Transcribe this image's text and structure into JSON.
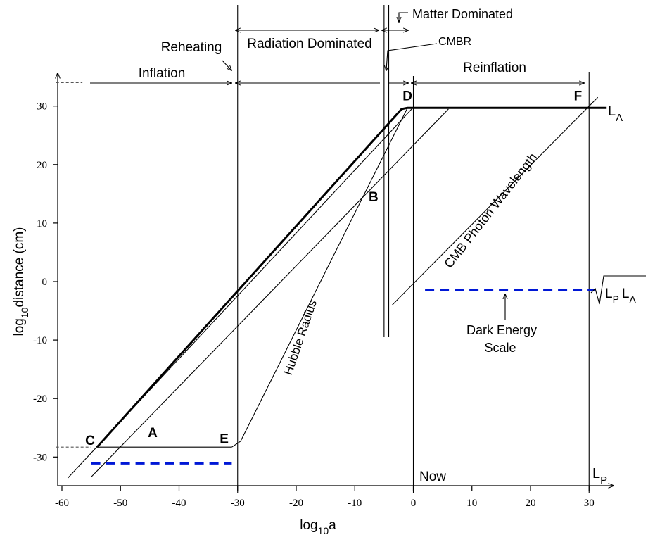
{
  "chart_data": {
    "type": "line",
    "xlabel": "log",
    "xlabel_sub": "10",
    "xlabel_tail": "a",
    "ylabel": "log",
    "ylabel_sub": "10",
    "ylabel_tail": "distance (cm)",
    "xlim": [
      -61,
      34
    ],
    "ylim": [
      -35,
      36
    ],
    "x_ticks": [
      -60,
      -50,
      -40,
      -30,
      -20,
      -10,
      0,
      10,
      20,
      30
    ],
    "y_ticks": [
      -30,
      -20,
      -10,
      0,
      10,
      20,
      30
    ],
    "series": [
      {
        "name": "",
        "style": "thick",
        "points": [
          [
            -54,
            -28.3
          ],
          [
            -2,
            29.5
          ],
          [
            -1,
            29.7
          ],
          [
            33,
            29.7
          ]
        ]
      },
      {
        "name": "",
        "style": "thin",
        "points": [
          [
            -54,
            -28.3
          ],
          [
            -31,
            -28.3
          ]
        ]
      },
      {
        "name": "",
        "style": "thin",
        "points": [
          [
            -59,
            -33.6
          ],
          [
            0,
            29.8
          ]
        ]
      },
      {
        "name": "",
        "style": "thin",
        "points": [
          [
            -55,
            -33.4
          ],
          [
            6,
            29.5
          ]
        ]
      },
      {
        "name": "Hubble Radius",
        "style": "thin",
        "points": [
          [
            -31,
            -28.3
          ],
          [
            -29.5,
            -27.3
          ],
          [
            -1,
            29.7
          ]
        ]
      },
      {
        "name": "CMB Photon Wavelength",
        "style": "thin",
        "points": [
          [
            -3.6,
            -4
          ],
          [
            31.5,
            31.5
          ]
        ]
      },
      {
        "name": "",
        "style": "dash-blue",
        "points": [
          [
            -55,
            -31.1
          ],
          [
            -31,
            -31.1
          ]
        ]
      },
      {
        "name": "",
        "style": "dash-blue",
        "points": [
          [
            2,
            -1.5
          ],
          [
            31,
            -1.5
          ]
        ]
      }
    ],
    "vertical_lines": [
      {
        "x": -30,
        "y_range": [
          -35,
          36
        ]
      },
      {
        "x": -5,
        "y_range": [
          -9.5,
          36
        ]
      },
      {
        "x": -4.2,
        "y_range": [
          -9.5,
          36
        ]
      },
      {
        "x": 0,
        "y_range": [
          -35,
          36
        ]
      },
      {
        "x": 30,
        "y_range": [
          -35,
          36
        ]
      }
    ],
    "guide_dashes": [
      {
        "y": 34,
        "x_range": [
          -61,
          -56.5
        ]
      },
      {
        "y": -28.3,
        "x_range": [
          -61,
          -55
        ]
      }
    ],
    "points": [
      {
        "label": "A",
        "x": -44.5,
        "y": -26.6
      },
      {
        "label": "B",
        "x": -6.8,
        "y": 13.7
      },
      {
        "label": "C",
        "x": -55.2,
        "y": -27.9
      },
      {
        "label": "D",
        "x": -1.0,
        "y": 31.0
      },
      {
        "label": "E",
        "x": -32.3,
        "y": -27.6
      },
      {
        "label": "F",
        "x": 28.1,
        "y": 31.0
      }
    ],
    "eras": [
      {
        "label": "Inflation",
        "x": -47.5,
        "y": 35.7
      },
      {
        "label": "Radiation Dominated",
        "x": -16.5,
        "y": 40.1
      },
      {
        "label": "Reinflation",
        "x": 15.3,
        "y": 36.2
      }
    ],
    "annotations": {
      "reheating": "Reheating",
      "matter_dominated": "Matter Dominated",
      "cmbr": "CMBR",
      "hubble_radius": "Hubble Radius",
      "cmb_photon_wavelength": "CMB Photon Wavelength",
      "dark_energy_line1": "Dark Energy",
      "dark_energy_line2": "Scale",
      "now": "Now",
      "l_lambda_main": "L",
      "l_lambda_sub": "Λ",
      "sqrt_l_p": "L",
      "sqrt_p_sub": "P",
      "sqrt_l_lambda": "L",
      "sqrt_lambda_sub": "Λ",
      "l_p_main": "L",
      "l_p_sub": "P"
    },
    "colors": {
      "dashed_scale": "#0018d6",
      "lines": "#000000"
    }
  }
}
